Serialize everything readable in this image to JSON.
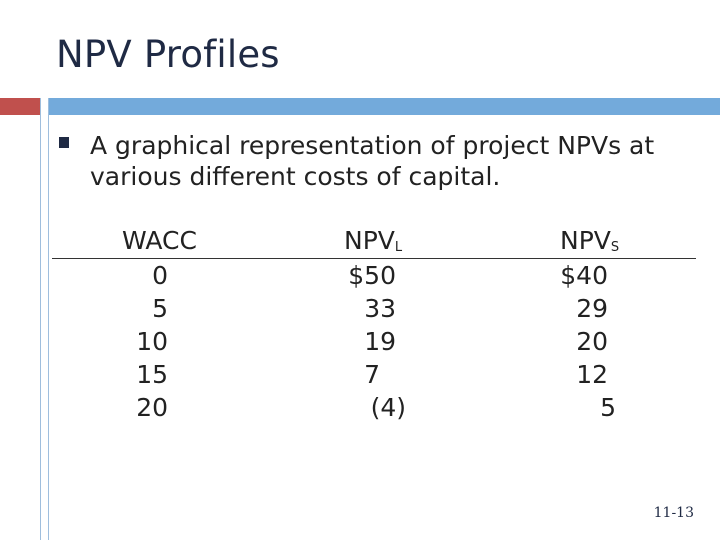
{
  "slide": {
    "title": "NPV Profiles",
    "bullet": "A graphical representation of project NPVs at various different costs of capital.",
    "page_number": "11-13",
    "colors": {
      "accent_red": "#c0504d",
      "accent_blue": "#5b9bd5",
      "title": "#1f2a44"
    }
  },
  "table": {
    "headers": {
      "wacc": "WACC",
      "npv_l_main": "NPV",
      "npv_l_sub": "L",
      "npv_s_main": "NPV",
      "npv_s_sub": "S"
    },
    "rows": [
      {
        "wacc": "0",
        "npv_l": "$50",
        "npv_s": "$40"
      },
      {
        "wacc": "5",
        "npv_l": "33",
        "npv_s": "29"
      },
      {
        "wacc": "10",
        "npv_l": "19",
        "npv_s": "20"
      },
      {
        "wacc": "15",
        "npv_l": "7",
        "npv_s": "12"
      },
      {
        "wacc": "20",
        "npv_l": "(4)",
        "npv_s": "5"
      }
    ]
  }
}
